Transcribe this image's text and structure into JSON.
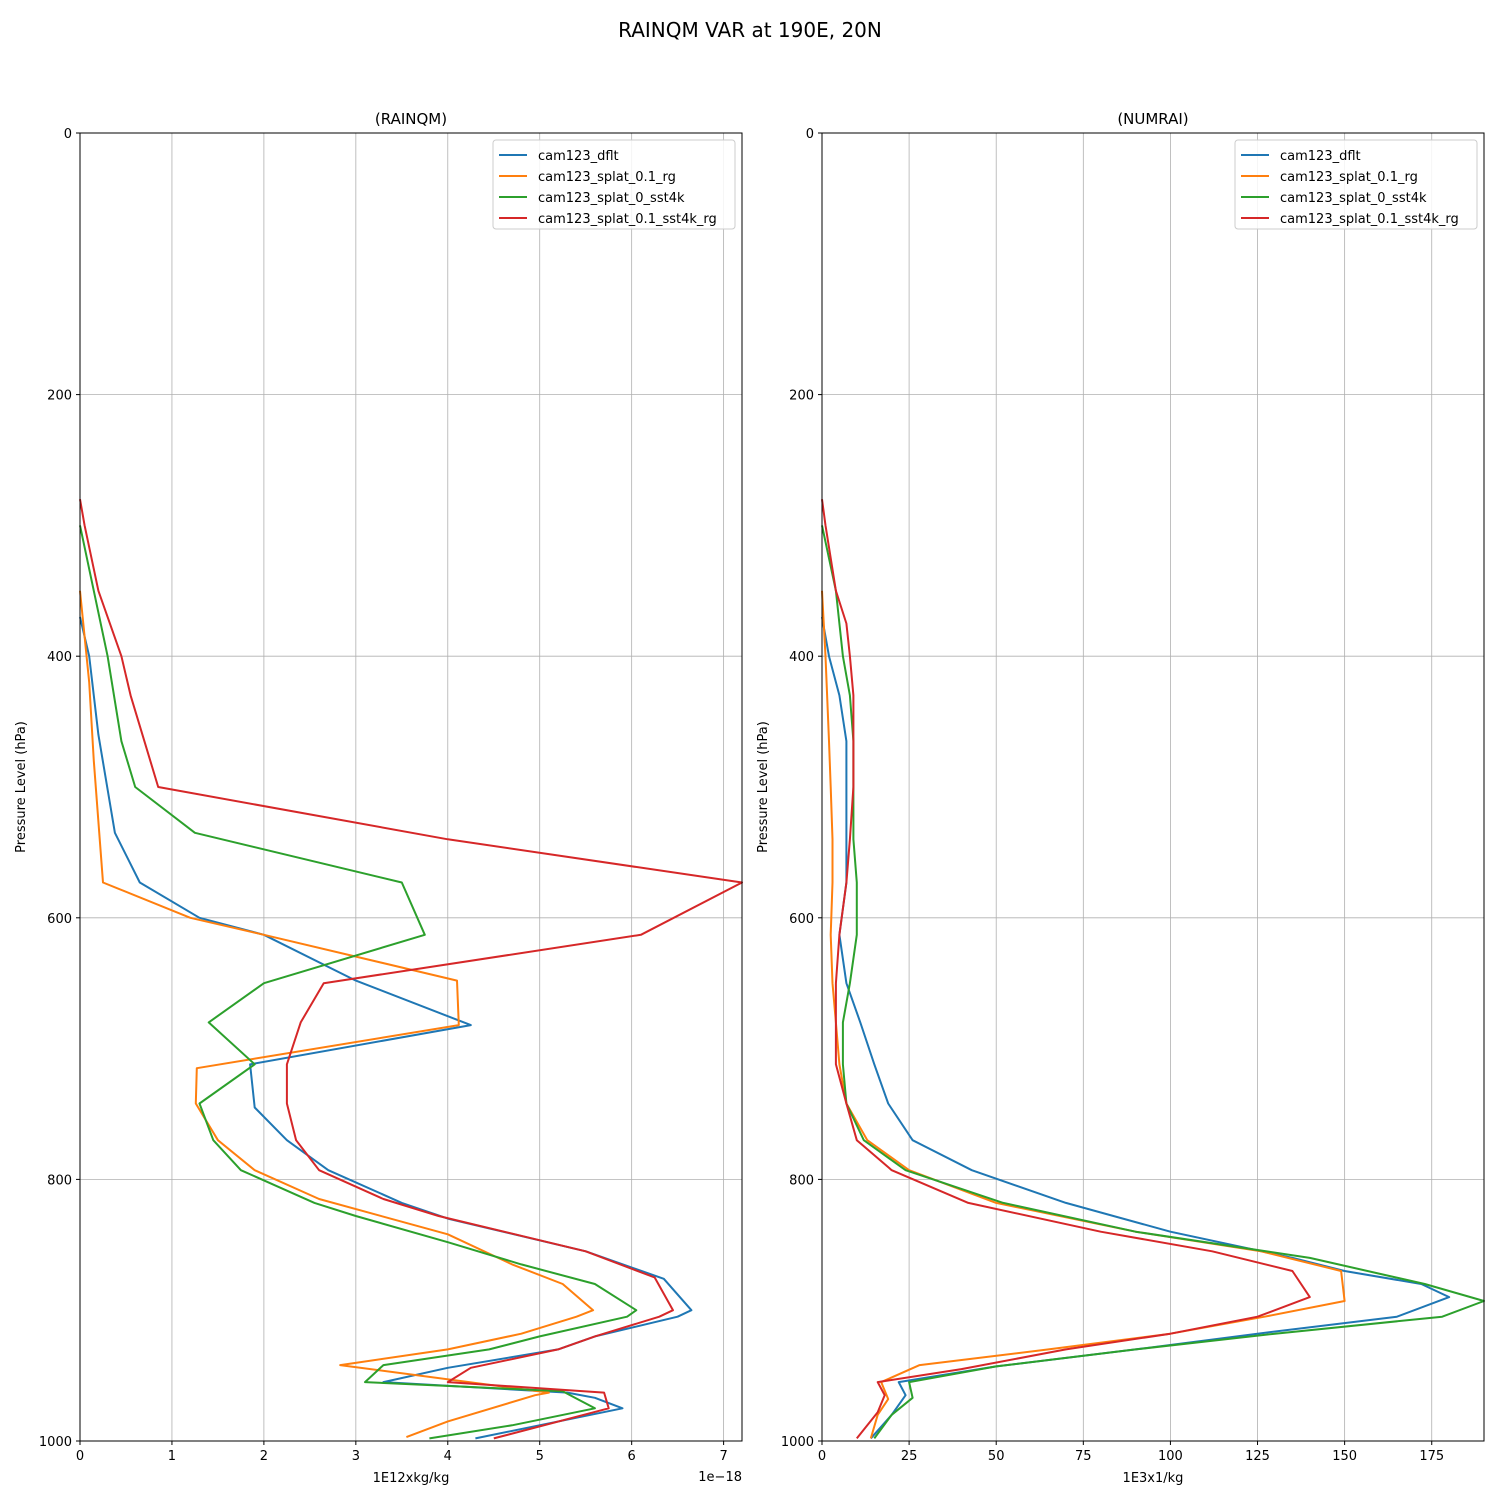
{
  "suptitle": "RAINQM VAR at 190E, 20N",
  "chart_data": [
    {
      "type": "line",
      "title": "(RAINQM)",
      "xlabel": "1E12xkg/kg",
      "ylabel": "Pressure Level (hPa)",
      "x_offset_label": "1e−18",
      "xlim": [
        0,
        7.2
      ],
      "ylim": [
        1000,
        0
      ],
      "xticks": [
        0,
        1,
        2,
        3,
        4,
        5,
        6,
        7
      ],
      "yticks": [
        0,
        200,
        400,
        600,
        800,
        1000
      ],
      "grid": true,
      "legend_position": "upper-right",
      "series": [
        {
          "name": "cam123_dflt",
          "color": "#1f77b4",
          "points": [
            [
              0,
              370
            ],
            [
              0.1,
              400
            ],
            [
              0.2,
              460
            ],
            [
              0.38,
              535
            ],
            [
              0.65,
              573
            ],
            [
              1.3,
              600
            ],
            [
              2.0,
              613
            ],
            [
              3.0,
              648
            ],
            [
              4.25,
              682
            ],
            [
              1.85,
              712
            ],
            [
              1.9,
              745
            ],
            [
              2.25,
              770
            ],
            [
              2.7,
              793
            ],
            [
              3.5,
              818
            ],
            [
              4.0,
              830
            ],
            [
              5.5,
              855
            ],
            [
              6.35,
              876
            ],
            [
              6.65,
              900
            ],
            [
              6.5,
              905
            ],
            [
              5.6,
              920
            ],
            [
              5.2,
              930
            ],
            [
              4.0,
              944
            ],
            [
              3.3,
              955
            ],
            [
              5.3,
              963
            ],
            [
              5.6,
              967
            ],
            [
              5.9,
              975
            ],
            [
              4.3,
              998
            ]
          ]
        },
        {
          "name": "cam123_splat_0.1_rg",
          "color": "#ff7f0e",
          "points": [
            [
              0,
              350
            ],
            [
              0.1,
              420
            ],
            [
              0.15,
              480
            ],
            [
              0.25,
              573
            ],
            [
              1.2,
              600
            ],
            [
              2.0,
              613
            ],
            [
              4.1,
              648
            ],
            [
              4.12,
              682
            ],
            [
              1.27,
              715
            ],
            [
              1.26,
              742
            ],
            [
              1.5,
              770
            ],
            [
              1.9,
              793
            ],
            [
              2.6,
              815
            ],
            [
              4.0,
              842
            ],
            [
              4.7,
              865
            ],
            [
              5.25,
              880
            ],
            [
              5.58,
              900
            ],
            [
              5.4,
              905
            ],
            [
              4.8,
              918
            ],
            [
              4.0,
              930
            ],
            [
              2.83,
              942
            ],
            [
              5.1,
              963
            ],
            [
              4.95,
              965
            ],
            [
              4.0,
              985
            ],
            [
              3.55,
              997
            ]
          ]
        },
        {
          "name": "cam123_splat_0_sst4k",
          "color": "#2ca02c",
          "points": [
            [
              0,
              300
            ],
            [
              0.15,
              350
            ],
            [
              0.3,
              400
            ],
            [
              0.45,
              465
            ],
            [
              0.6,
              500
            ],
            [
              1.25,
              535
            ],
            [
              3.5,
              573
            ],
            [
              3.75,
              613
            ],
            [
              2.0,
              650
            ],
            [
              1.4,
              680
            ],
            [
              1.9,
              712
            ],
            [
              1.3,
              742
            ],
            [
              1.45,
              770
            ],
            [
              1.75,
              793
            ],
            [
              2.55,
              818
            ],
            [
              3.0,
              828
            ],
            [
              4.0,
              848
            ],
            [
              4.8,
              865
            ],
            [
              5.6,
              880
            ],
            [
              6.05,
              900
            ],
            [
              5.95,
              905
            ],
            [
              5.0,
              920
            ],
            [
              4.45,
              930
            ],
            [
              3.3,
              942
            ],
            [
              3.1,
              955
            ],
            [
              5.25,
              962
            ],
            [
              5.6,
              975
            ],
            [
              4.7,
              988
            ],
            [
              3.8,
              998
            ]
          ]
        },
        {
          "name": "cam123_splat_0.1_sst4k_rg",
          "color": "#d62728",
          "points": [
            [
              0,
              280
            ],
            [
              0.05,
              300
            ],
            [
              0.2,
              350
            ],
            [
              0.45,
              400
            ],
            [
              0.55,
              430
            ],
            [
              0.7,
              465
            ],
            [
              0.85,
              500
            ],
            [
              4.0,
              540
            ],
            [
              7.2,
              573
            ],
            [
              6.1,
              613
            ],
            [
              2.65,
              650
            ],
            [
              2.4,
              680
            ],
            [
              2.25,
              712
            ],
            [
              2.25,
              742
            ],
            [
              2.35,
              770
            ],
            [
              2.6,
              793
            ],
            [
              3.3,
              815
            ],
            [
              3.9,
              828
            ],
            [
              5.5,
              855
            ],
            [
              6.25,
              875
            ],
            [
              6.45,
              900
            ],
            [
              6.3,
              905
            ],
            [
              5.6,
              920
            ],
            [
              5.2,
              930
            ],
            [
              4.25,
              944
            ],
            [
              4.0,
              955
            ],
            [
              5.7,
              963
            ],
            [
              5.75,
              975
            ],
            [
              4.5,
              998
            ]
          ]
        }
      ]
    },
    {
      "type": "line",
      "title": "(NUMRAI)",
      "xlabel": "1E3x1/kg",
      "ylabel": "Pressure Level (hPa)",
      "xlim": [
        0,
        190
      ],
      "ylim": [
        1000,
        0
      ],
      "xticks": [
        0,
        25,
        50,
        75,
        100,
        125,
        150,
        175
      ],
      "yticks": [
        0,
        200,
        400,
        600,
        800,
        1000
      ],
      "grid": true,
      "legend_position": "upper-right",
      "series": [
        {
          "name": "cam123_dflt",
          "color": "#1f77b4",
          "points": [
            [
              0,
              370
            ],
            [
              2,
              400
            ],
            [
              5,
              430
            ],
            [
              7,
              465
            ],
            [
              7,
              500
            ],
            [
              7,
              535
            ],
            [
              7,
              573
            ],
            [
              5,
              613
            ],
            [
              7,
              650
            ],
            [
              11,
              680
            ],
            [
              15,
              712
            ],
            [
              19,
              742
            ],
            [
              26,
              770
            ],
            [
              43,
              793
            ],
            [
              70,
              818
            ],
            [
              100,
              840
            ],
            [
              135,
              860
            ],
            [
              150,
              870
            ],
            [
              172,
              880
            ],
            [
              180,
              890
            ],
            [
              165,
              905
            ],
            [
              125,
              918
            ],
            [
              90,
              930
            ],
            [
              50,
              943
            ],
            [
              22,
              955
            ],
            [
              24,
              965
            ],
            [
              20,
              980
            ],
            [
              14,
              998
            ]
          ]
        },
        {
          "name": "cam123_splat_0.1_rg",
          "color": "#ff7f0e",
          "points": [
            [
              0,
              350
            ],
            [
              1,
              400
            ],
            [
              2,
              465
            ],
            [
              2.5,
              500
            ],
            [
              3,
              540
            ],
            [
              3,
              573
            ],
            [
              2.5,
              613
            ],
            [
              3,
              650
            ],
            [
              4,
              680
            ],
            [
              5,
              712
            ],
            [
              7,
              742
            ],
            [
              13,
              770
            ],
            [
              25,
              793
            ],
            [
              50,
              818
            ],
            [
              90,
              840
            ],
            [
              126,
              855
            ],
            [
              149,
              870
            ],
            [
              150,
              893
            ],
            [
              127,
              905
            ],
            [
              100,
              918
            ],
            [
              65,
              930
            ],
            [
              28,
              942
            ],
            [
              17,
              955
            ],
            [
              19,
              968
            ],
            [
              16,
              980
            ],
            [
              14,
              998
            ]
          ]
        },
        {
          "name": "cam123_splat_0_sst4k",
          "color": "#2ca02c",
          "points": [
            [
              0,
              300
            ],
            [
              4,
              350
            ],
            [
              6,
              400
            ],
            [
              8,
              430
            ],
            [
              9,
              465
            ],
            [
              9,
              500
            ],
            [
              9,
              540
            ],
            [
              10,
              573
            ],
            [
              10,
              613
            ],
            [
              8,
              650
            ],
            [
              6,
              680
            ],
            [
              6,
              712
            ],
            [
              7,
              742
            ],
            [
              12,
              770
            ],
            [
              24,
              793
            ],
            [
              52,
              818
            ],
            [
              90,
              840
            ],
            [
              140,
              860
            ],
            [
              173,
              880
            ],
            [
              190,
              893
            ],
            [
              178,
              905
            ],
            [
              130,
              918
            ],
            [
              90,
              930
            ],
            [
              50,
              943
            ],
            [
              25,
              955
            ],
            [
              26,
              967
            ],
            [
              20,
              980
            ],
            [
              15,
              998
            ]
          ]
        },
        {
          "name": "cam123_splat_0.1_sst4k_rg",
          "color": "#d62728",
          "points": [
            [
              0,
              280
            ],
            [
              1,
              300
            ],
            [
              4,
              350
            ],
            [
              7,
              375
            ],
            [
              8,
              400
            ],
            [
              9,
              430
            ],
            [
              9,
              465
            ],
            [
              9,
              500
            ],
            [
              8,
              540
            ],
            [
              7,
              573
            ],
            [
              5,
              613
            ],
            [
              4,
              650
            ],
            [
              4,
              680
            ],
            [
              4,
              712
            ],
            [
              7,
              742
            ],
            [
              10,
              770
            ],
            [
              20,
              793
            ],
            [
              42,
              818
            ],
            [
              80,
              840
            ],
            [
              112,
              855
            ],
            [
              135,
              870
            ],
            [
              140,
              890
            ],
            [
              125,
              905
            ],
            [
              100,
              918
            ],
            [
              70,
              930
            ],
            [
              40,
              945
            ],
            [
              16,
              955
            ],
            [
              18,
              965
            ],
            [
              16,
              978
            ],
            [
              10,
              998
            ]
          ]
        }
      ]
    }
  ]
}
